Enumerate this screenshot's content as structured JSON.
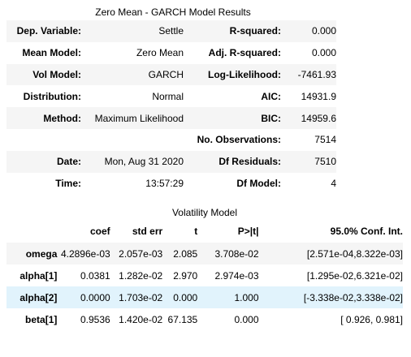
{
  "summary": {
    "title": "Zero Mean - GARCH Model Results",
    "rows": [
      [
        "Dep. Variable:",
        "Settle",
        "R-squared:",
        "0.000"
      ],
      [
        "Mean Model:",
        "Zero Mean",
        "Adj. R-squared:",
        "0.000"
      ],
      [
        "Vol Model:",
        "GARCH",
        "Log-Likelihood:",
        "-7461.93"
      ],
      [
        "Distribution:",
        "Normal",
        "AIC:",
        "14931.9"
      ],
      [
        "Method:",
        "Maximum Likelihood",
        "BIC:",
        "14959.6"
      ],
      [
        "",
        "",
        "No. Observations:",
        "7514"
      ],
      [
        "Date:",
        "Mon, Aug 31 2020",
        "Df Residuals:",
        "7510"
      ],
      [
        "Time:",
        "13:57:29",
        "Df Model:",
        "4"
      ]
    ]
  },
  "volatility": {
    "title": "Volatility Model",
    "headers": [
      "",
      "coef",
      "std err",
      "t",
      "P>|t|",
      "95.0% Conf. Int."
    ],
    "rows": [
      [
        "omega",
        "4.2896e-03",
        "2.057e-03",
        "2.085",
        "3.708e-02",
        "[2.571e-04,8.322e-03]"
      ],
      [
        "alpha[1]",
        "0.0381",
        "1.282e-02",
        "2.970",
        "2.974e-03",
        "[1.295e-02,6.321e-02]"
      ],
      [
        "alpha[2]",
        "0.0000",
        "1.703e-02",
        "0.000",
        "1.000",
        "[-3.338e-02,3.338e-02]"
      ],
      [
        "beta[1]",
        "0.9536",
        "1.420e-02",
        "67.135",
        "0.000",
        "[ 0.926, 0.981]"
      ]
    ],
    "highlighted_row": 2,
    "highlight_color": "#e1f3fc",
    "stripe_color": "#f5f5f5"
  }
}
